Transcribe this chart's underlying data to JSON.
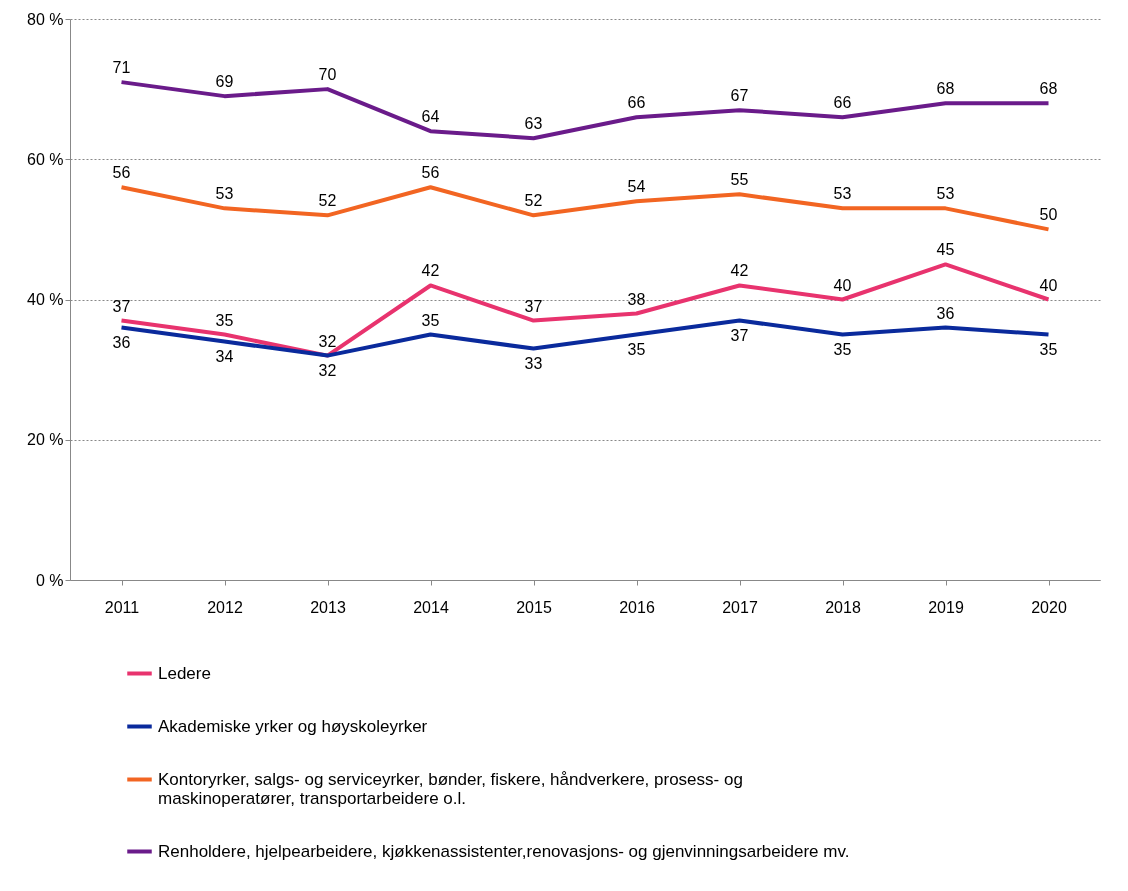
{
  "chart_data": {
    "type": "line",
    "categories": [
      "2011",
      "2012",
      "2013",
      "2014",
      "2015",
      "2016",
      "2017",
      "2018",
      "2019",
      "2020"
    ],
    "series": [
      {
        "name": "Ledere",
        "color": "#e8336e",
        "values": [
          37,
          35,
          32,
          42,
          37,
          38,
          42,
          40,
          45,
          40
        ]
      },
      {
        "name": "Akademiske yrker og høyskoleyrker",
        "color": "#0a2a9c",
        "values": [
          36,
          34,
          32,
          35,
          33,
          35,
          37,
          35,
          36,
          35
        ]
      },
      {
        "name": "Kontoryrker, salgs- og serviceyrker, bønder, fiskere, håndverkere, prosess- og maskinoperatører, transportarbeidere o.l.",
        "color": "#f26522",
        "values": [
          56,
          53,
          52,
          56,
          52,
          54,
          55,
          53,
          53,
          50
        ]
      },
      {
        "name": "Renholdere, hjelpearbeidere, kjøkkenassistenter,renovasjons- og gjenvinningsarbeidere mv.",
        "color": "#6a1b8a",
        "values": [
          71,
          69,
          70,
          64,
          63,
          66,
          67,
          66,
          68,
          68
        ]
      }
    ],
    "ylim": [
      0,
      80
    ],
    "yticks": [
      {
        "value": 0,
        "label": "0 %"
      },
      {
        "value": 20,
        "label": "20 %"
      },
      {
        "value": 40,
        "label": "40 %"
      },
      {
        "value": 60,
        "label": "60 %"
      },
      {
        "value": 80,
        "label": "80 %"
      }
    ],
    "grid": "y",
    "legend": "bottom",
    "data_labels": true
  }
}
